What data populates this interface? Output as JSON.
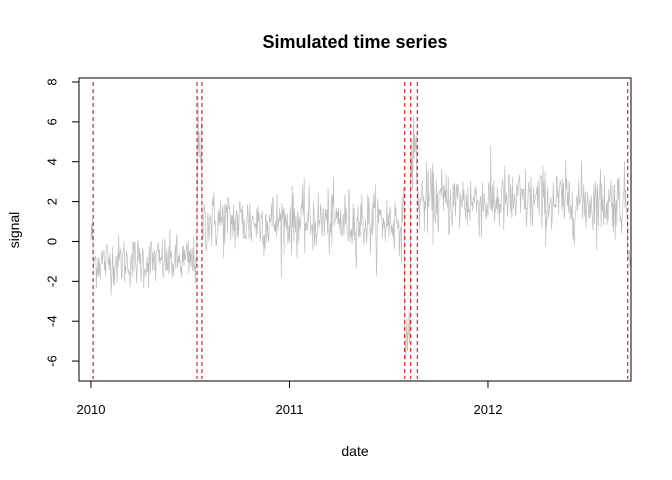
{
  "chart_data": {
    "type": "line",
    "title": "Simulated time series",
    "xlabel": "date",
    "ylabel": "signal",
    "x_ticks": [
      "2010",
      "2011",
      "2012"
    ],
    "y_ticks": [
      -6,
      -4,
      -2,
      0,
      2,
      4,
      6,
      8
    ],
    "xlim": [
      "2009-12-10",
      "2012-09-20"
    ],
    "ylim": [
      -7,
      8.2
    ],
    "grid": false,
    "series_color": "#bebebe",
    "changepoint_color": "#cc0000",
    "changepoint_style": "dashed",
    "changepoints": [
      "2010-01-05",
      "2010-07-15",
      "2010-07-24",
      "2011-08-01",
      "2011-08-12",
      "2011-08-24",
      "2012-09-14"
    ],
    "segments": [
      {
        "start": "2010-01-01",
        "end": "2010-01-04",
        "mean": 0.3,
        "sd": 0.6
      },
      {
        "start": "2010-01-05",
        "end": "2010-07-14",
        "mean": -1.0,
        "sd": 0.65
      },
      {
        "start": "2010-07-15",
        "end": "2010-07-23",
        "mean": 3.8,
        "sd": 1.6
      },
      {
        "start": "2010-07-24",
        "end": "2011-07-31",
        "mean": 1.0,
        "sd": 0.8
      },
      {
        "start": "2011-08-01",
        "end": "2011-08-11",
        "mean": -4.5,
        "sd": 0.7
      },
      {
        "start": "2011-08-12",
        "end": "2011-08-23",
        "mean": 4.4,
        "sd": 1.0
      },
      {
        "start": "2011-08-24",
        "end": "2012-09-13",
        "mean": 2.0,
        "sd": 0.85
      },
      {
        "start": "2012-09-14",
        "end": "2012-09-19",
        "mean": -0.6,
        "sd": 0.4
      }
    ]
  }
}
